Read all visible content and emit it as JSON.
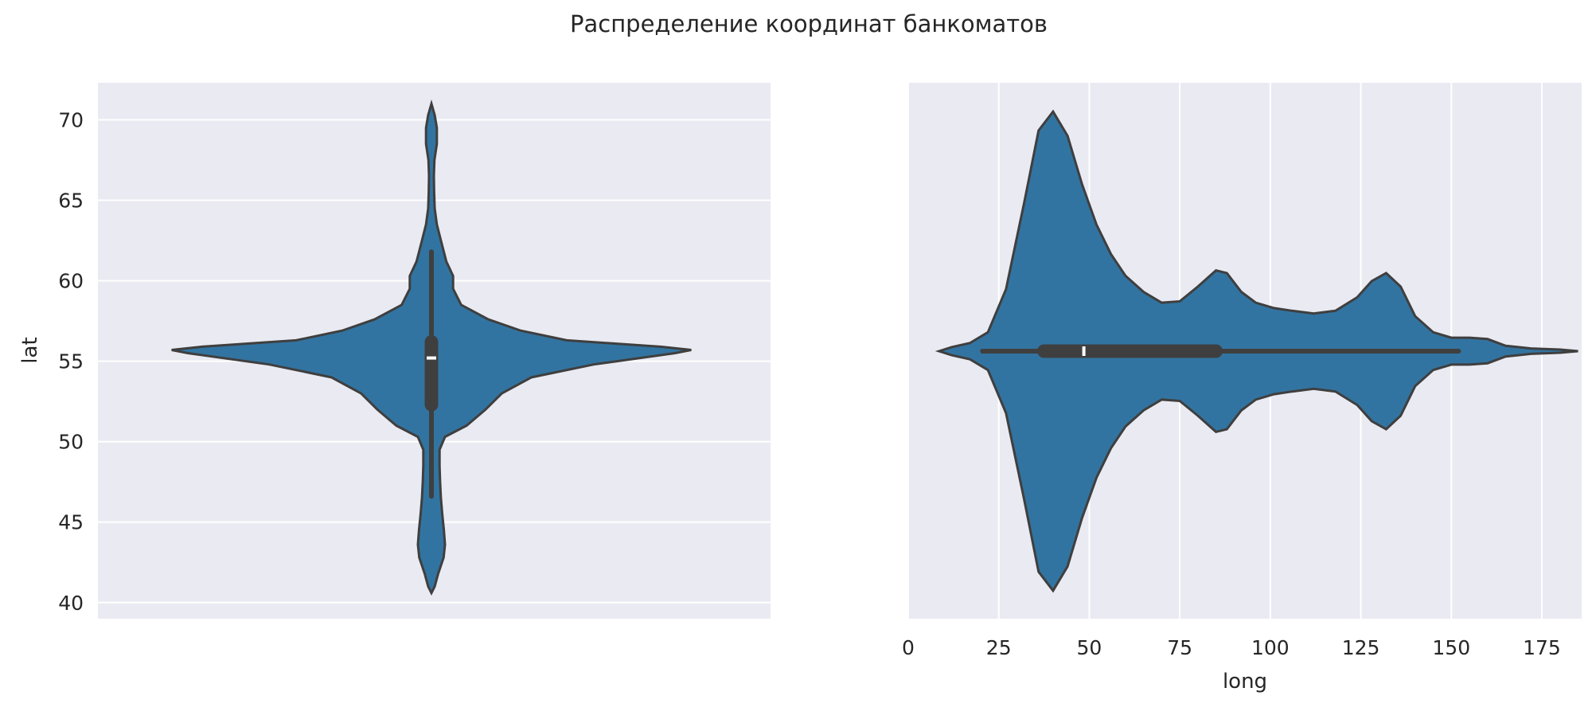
{
  "figure": {
    "title": "Распределение координат банкоматов"
  },
  "chart_data": [
    {
      "type": "violin",
      "orientation": "vertical",
      "title": "",
      "ylabel": "lat",
      "xlabel": "",
      "ylim": [
        39.0,
        72.3
      ],
      "yticks": [
        40,
        45,
        50,
        55,
        60,
        65,
        70
      ],
      "grid": true,
      "colors": {
        "fill": "#3274a1",
        "edge": "#3f3f3f",
        "background": "#eaeaf2",
        "grid": "#ffffff",
        "median": "#ffffff"
      },
      "stats": {
        "min": 46.6,
        "q1": 52.3,
        "median": 55.2,
        "q3": 56.2,
        "max": 61.8,
        "kde_min": 40.6,
        "kde_max": 71.0
      },
      "density_profile": [
        [
          40.6,
          0.0
        ],
        [
          41.0,
          0.012
        ],
        [
          41.8,
          0.025
        ],
        [
          42.8,
          0.045
        ],
        [
          43.6,
          0.05
        ],
        [
          44.5,
          0.046
        ],
        [
          45.5,
          0.04
        ],
        [
          46.5,
          0.035
        ],
        [
          47.5,
          0.032
        ],
        [
          48.5,
          0.03
        ],
        [
          49.5,
          0.03
        ],
        [
          50.3,
          0.05
        ],
        [
          51.0,
          0.13
        ],
        [
          52.0,
          0.2
        ],
        [
          53.0,
          0.26
        ],
        [
          54.0,
          0.37
        ],
        [
          54.8,
          0.6
        ],
        [
          55.5,
          0.9
        ],
        [
          55.7,
          0.96
        ],
        [
          55.9,
          0.85
        ],
        [
          56.3,
          0.5
        ],
        [
          56.9,
          0.33
        ],
        [
          57.6,
          0.21
        ],
        [
          58.5,
          0.11
        ],
        [
          59.5,
          0.08
        ],
        [
          60.3,
          0.08
        ],
        [
          61.2,
          0.055
        ],
        [
          62.5,
          0.035
        ],
        [
          63.5,
          0.02
        ],
        [
          64.5,
          0.012
        ],
        [
          65.5,
          0.01
        ],
        [
          66.5,
          0.009
        ],
        [
          67.5,
          0.011
        ],
        [
          68.5,
          0.02
        ],
        [
          69.5,
          0.02
        ],
        [
          70.3,
          0.012
        ],
        [
          71.0,
          0.0
        ]
      ]
    },
    {
      "type": "violin",
      "orientation": "horizontal",
      "title": "",
      "xlabel": "long",
      "ylabel": "",
      "xlim": [
        0,
        186
      ],
      "xticks": [
        0,
        25,
        50,
        75,
        100,
        125,
        150,
        175
      ],
      "grid": true,
      "colors": {
        "fill": "#3274a1",
        "edge": "#3f3f3f",
        "background": "#eaeaf2",
        "grid": "#ffffff",
        "median": "#ffffff"
      },
      "stats": {
        "min": 20.5,
        "q1": 37.5,
        "median": 48.5,
        "q3": 85.0,
        "max": 152.0,
        "kde_min": 8.5,
        "kde_max": 185.0
      },
      "density_profile": [
        [
          8.5,
          0.0
        ],
        [
          12,
          0.015
        ],
        [
          17,
          0.03
        ],
        [
          22,
          0.07
        ],
        [
          27,
          0.23
        ],
        [
          32,
          0.55
        ],
        [
          36,
          0.82
        ],
        [
          40,
          0.89
        ],
        [
          44,
          0.8
        ],
        [
          48,
          0.62
        ],
        [
          52,
          0.47
        ],
        [
          56,
          0.36
        ],
        [
          60,
          0.28
        ],
        [
          65,
          0.22
        ],
        [
          70,
          0.18
        ],
        [
          75,
          0.185
        ],
        [
          80,
          0.24
        ],
        [
          85,
          0.3
        ],
        [
          88,
          0.29
        ],
        [
          92,
          0.22
        ],
        [
          96,
          0.18
        ],
        [
          101,
          0.16
        ],
        [
          106,
          0.15
        ],
        [
          112,
          0.14
        ],
        [
          118,
          0.15
        ],
        [
          124,
          0.2
        ],
        [
          128,
          0.26
        ],
        [
          132,
          0.29
        ],
        [
          136,
          0.24
        ],
        [
          140,
          0.13
        ],
        [
          145,
          0.07
        ],
        [
          150,
          0.05
        ],
        [
          155,
          0.05
        ],
        [
          160,
          0.045
        ],
        [
          165,
          0.02
        ],
        [
          172,
          0.01
        ],
        [
          180,
          0.006
        ],
        [
          185,
          0.0
        ]
      ]
    }
  ]
}
